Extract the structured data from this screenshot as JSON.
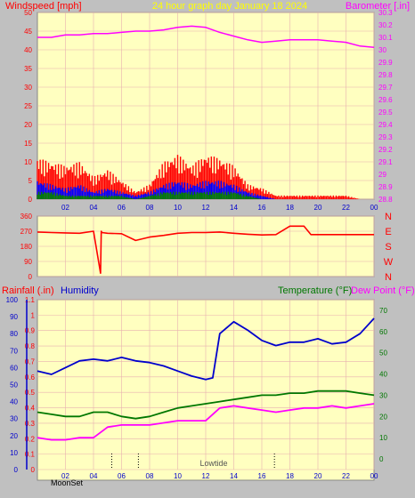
{
  "colors": {
    "frame": "#c0c0c0",
    "plot_bg": "#ffffc0",
    "grid": "#e8b0b0",
    "wind": "#ff0000",
    "wind_avg": "#0000ff",
    "wind_low": "#008000",
    "barometer": "#ff00ff",
    "direction": "#ff0000",
    "humidity": "#0000cc",
    "temperature": "#007700",
    "dewpoint": "#ff00ff",
    "header_mid": "#ffff00"
  },
  "header": {
    "windspeed": "Windspeed [mph]",
    "title": "24 hour graph day    January 18 2024",
    "barometer": "Barometer [.in]"
  },
  "labels": {
    "rainfall": "Rainfall (.in)",
    "humidity": "Humidity",
    "temperature": "Temperature (°F)",
    "dewpoint": "Dew Point (°F)",
    "lowtide": "Lowtide",
    "moonset": "MoonSet"
  },
  "chart_data": [
    {
      "type": "line",
      "panel": "wind-barometer",
      "x_ticks": [
        "02",
        "04",
        "06",
        "08",
        "10",
        "12",
        "14",
        "16",
        "18",
        "20",
        "22",
        "00"
      ],
      "y_left_ticks": [
        "0",
        "5",
        "10",
        "15",
        "20",
        "25",
        "30",
        "35",
        "40",
        "45",
        "50"
      ],
      "y_left_range": [
        0,
        50
      ],
      "y_right_ticks": [
        "28.8",
        "28.9",
        "29",
        "29.1",
        "29.2",
        "29.3",
        "29.4",
        "29.5",
        "29.6",
        "29.7",
        "29.8",
        "29.9",
        "30",
        "30.1",
        "30.2",
        "30.3"
      ],
      "y_right_range": [
        28.8,
        30.3
      ],
      "series": [
        {
          "axis": "right",
          "x": [
            0,
            1,
            2,
            3,
            4,
            5,
            6,
            7,
            8,
            9,
            10,
            11,
            12,
            13,
            14,
            15,
            16,
            17,
            18,
            19,
            20,
            21,
            22,
            23,
            24
          ],
          "y": [
            30.1,
            30.1,
            30.12,
            30.12,
            30.13,
            30.13,
            30.14,
            30.15,
            30.15,
            30.16,
            30.18,
            30.19,
            30.18,
            30.14,
            30.11,
            30.08,
            30.06,
            30.07,
            30.08,
            30.08,
            30.08,
            30.07,
            30.06,
            30.03,
            30.02
          ]
        },
        {
          "axis": "left",
          "x": [
            0,
            1,
            2,
            3,
            4,
            5,
            6,
            7,
            8,
            9,
            10,
            11,
            12,
            13,
            14,
            15,
            16,
            17,
            18,
            19,
            20,
            21,
            22,
            23,
            24
          ],
          "y": [
            11,
            10,
            9,
            10,
            6,
            8,
            5,
            2,
            4,
            10,
            12,
            9,
            12,
            11,
            9,
            4,
            3,
            1,
            1,
            1,
            1,
            1,
            1,
            0,
            0
          ]
        },
        {
          "axis": "left",
          "x": [
            0,
            1,
            2,
            3,
            4,
            5,
            6,
            7,
            8,
            9,
            10,
            11,
            12,
            13,
            14,
            15,
            16,
            17,
            18,
            19,
            20,
            21,
            22,
            23,
            24
          ],
          "y": [
            5,
            4,
            3,
            4,
            2,
            3,
            2,
            1,
            2,
            4,
            5,
            4,
            5,
            5,
            4,
            2,
            1,
            0,
            0,
            0,
            0,
            0,
            0,
            0,
            0
          ]
        },
        {
          "axis": "left",
          "x": [
            0,
            1,
            2,
            3,
            4,
            5,
            6,
            7,
            8,
            9,
            10,
            11,
            12,
            13,
            14,
            15,
            16,
            17,
            18,
            19,
            20,
            21,
            22,
            23,
            24
          ],
          "y": [
            2,
            2,
            1,
            1,
            1,
            1,
            1,
            0,
            1,
            2,
            2,
            2,
            2,
            2,
            2,
            1,
            0,
            0,
            0,
            0,
            0,
            0,
            0,
            0,
            0
          ]
        }
      ]
    },
    {
      "type": "line",
      "panel": "wind-direction",
      "x_ticks": [
        "02",
        "04",
        "06",
        "08",
        "10",
        "12",
        "14",
        "16",
        "18",
        "20",
        "22",
        "00"
      ],
      "y_left_ticks": [
        "0",
        "90",
        "180",
        "270",
        "360"
      ],
      "y_left_range": [
        0,
        360
      ],
      "y_right_ticks": [
        "N",
        "W",
        "S",
        "E",
        "N"
      ],
      "series": [
        {
          "axis": "left",
          "x": [
            0,
            1,
            2,
            3,
            4,
            4.5,
            4.55,
            4.6,
            5,
            6,
            7,
            8,
            9,
            10,
            11,
            12,
            13,
            14,
            15,
            16,
            17,
            18,
            19,
            19.5,
            20,
            21,
            22,
            23,
            24
          ],
          "y": [
            265,
            262,
            260,
            258,
            270,
            20,
            270,
            262,
            258,
            255,
            215,
            235,
            245,
            258,
            262,
            262,
            265,
            258,
            252,
            248,
            250,
            300,
            300,
            250,
            250,
            250,
            250,
            250,
            250
          ]
        }
      ]
    },
    {
      "type": "line",
      "panel": "humidity-temperature",
      "x_ticks": [
        "02",
        "04",
        "06",
        "08",
        "10",
        "12",
        "14",
        "16",
        "18",
        "20",
        "22",
        "00"
      ],
      "y_left_rain_ticks": [
        "0",
        "0.1",
        "0.2",
        "0.3",
        "0.4",
        "0.5",
        "0.6",
        "0.7",
        "0.8",
        "0.9",
        "1",
        "1.1"
      ],
      "y_left_rain_range": [
        0,
        1.1
      ],
      "y_left_hum_ticks": [
        "0",
        "10",
        "20",
        "30",
        "40",
        "50",
        "60",
        "70",
        "80",
        "90",
        "100"
      ],
      "y_left_hum_range": [
        0,
        100
      ],
      "y_right_ticks": [
        "0",
        "10",
        "20",
        "30",
        "40",
        "50",
        "60",
        "70"
      ],
      "y_right_range": [
        -5,
        75
      ],
      "series": [
        {
          "name": "Humidity",
          "axis": "humidity",
          "x": [
            0,
            1,
            2,
            3,
            4,
            5,
            6,
            7,
            8,
            9,
            10,
            11,
            12,
            12.5,
            13,
            14,
            15,
            16,
            17,
            18,
            19,
            20,
            21,
            22,
            23,
            24
          ],
          "y": [
            58,
            56,
            60,
            64,
            65,
            64,
            66,
            64,
            63,
            61,
            58,
            55,
            53,
            54,
            80,
            87,
            82,
            76,
            73,
            75,
            75,
            77,
            74,
            75,
            80,
            89
          ]
        },
        {
          "name": "Temperature",
          "axis": "right",
          "x": [
            0,
            1,
            2,
            3,
            4,
            5,
            6,
            7,
            8,
            9,
            10,
            11,
            12,
            13,
            14,
            15,
            16,
            17,
            18,
            19,
            20,
            21,
            22,
            23,
            24
          ],
          "y": [
            22,
            21,
            20,
            20,
            22,
            22,
            20,
            19,
            20,
            22,
            24,
            25,
            26,
            27,
            28,
            29,
            30,
            30,
            31,
            31,
            32,
            32,
            32,
            31,
            30
          ]
        },
        {
          "name": "Dew Point",
          "axis": "right",
          "x": [
            0,
            1,
            2,
            3,
            4,
            5,
            6,
            7,
            8,
            9,
            10,
            11,
            12,
            13,
            14,
            15,
            16,
            17,
            18,
            19,
            20,
            21,
            22,
            23,
            24
          ],
          "y": [
            10,
            9,
            9,
            10,
            10,
            15,
            16,
            16,
            16,
            17,
            18,
            18,
            18,
            24,
            25,
            24,
            23,
            22,
            23,
            24,
            24,
            25,
            24,
            25,
            26
          ]
        }
      ],
      "markers": [
        5.3,
        7.2,
        16.9
      ]
    }
  ]
}
